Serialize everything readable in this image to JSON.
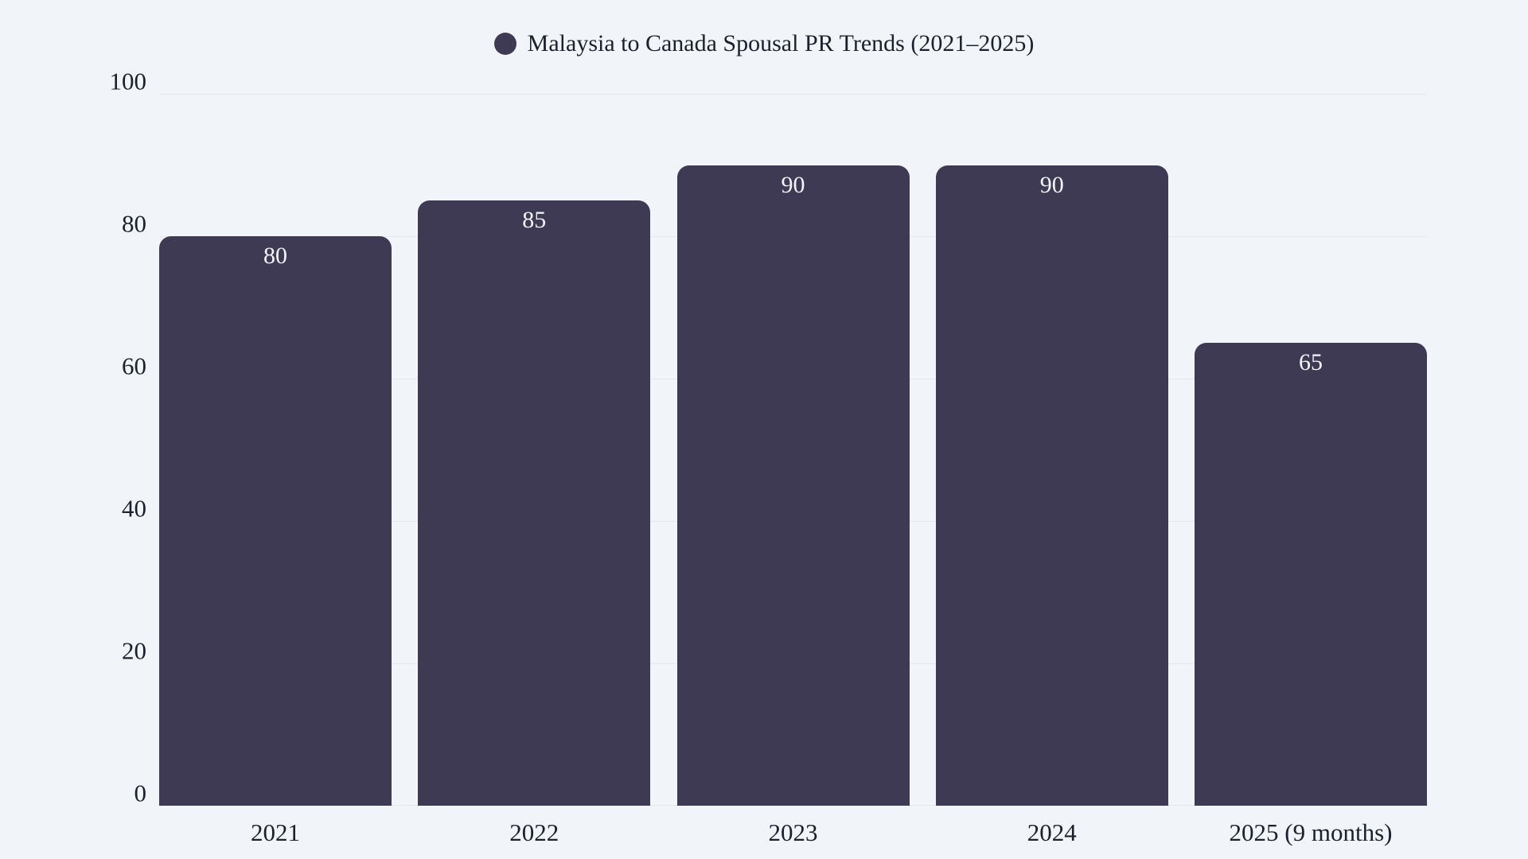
{
  "page": {
    "background_color": "#f1f5f9",
    "text_color": "#1a202c",
    "gridline_color": "#e2e8f0"
  },
  "legend": {
    "label": "Malaysia to Canada Spousal PR Trends (2021–2025)",
    "marker_color": "#3e3a53",
    "position": "top-center"
  },
  "chart_data": {
    "type": "bar",
    "title": "Malaysia to Canada Spousal PR Trends (2021–2025)",
    "categories": [
      "2021",
      "2022",
      "2023",
      "2024",
      "2025 (9 months)"
    ],
    "values": [
      80,
      85,
      90,
      90,
      65
    ],
    "value_labels": [
      "80",
      "85",
      "90",
      "90",
      "65"
    ],
    "xlabel": "",
    "ylabel": "",
    "yticks": [
      0,
      20,
      40,
      60,
      80,
      100
    ],
    "ylim": [
      0,
      100
    ],
    "grid": true,
    "legend_position": "top-center",
    "bar_color": "#3e3a53",
    "value_label_color": "#f1f5f9"
  }
}
